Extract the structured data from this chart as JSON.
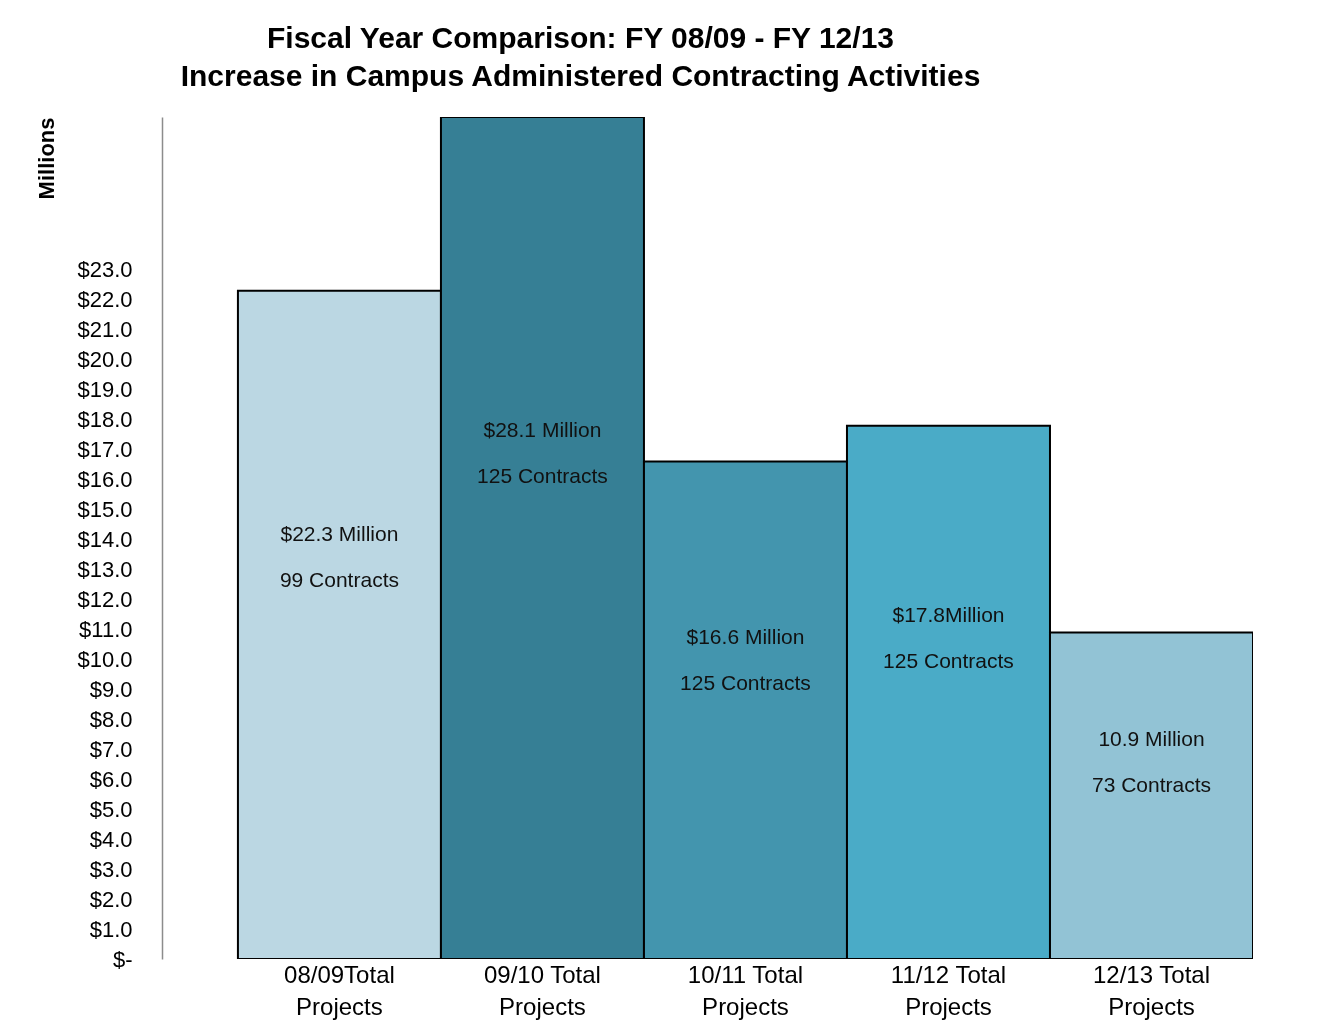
{
  "chart_data": {
    "type": "bar",
    "title": "Fiscal Year Comparison:  FY 08/09 - FY 12/13",
    "subtitle": "Increase in Campus Administered Contracting Activities",
    "ylabel": "Millions",
    "categories": [
      "08/09Total Projects",
      "09/10 Total Projects",
      "10/11 Total Projects",
      "11/12 Total Projects",
      "12/13 Total Projects"
    ],
    "values": [
      22.3,
      28.1,
      16.6,
      17.8,
      10.9
    ],
    "value_labels": [
      "$22.3 Million\n99 Contracts",
      "$28.1 Million\n125 Contracts",
      "$16.6 Million\n125 Contracts",
      "$17.8Million\n125 Contracts",
      "10.9 Million\n73 Contracts"
    ],
    "colors": [
      "#bbd7e3",
      "#367f95",
      "#4395ae",
      "#4aabc7",
      "#92c3d5"
    ],
    "ylim": [
      0,
      28.1
    ],
    "yticks": [
      {
        "value": 0,
        "label": "$-"
      },
      {
        "value": 1,
        "label": "$1.0"
      },
      {
        "value": 2,
        "label": "$2.0"
      },
      {
        "value": 3,
        "label": "$3.0"
      },
      {
        "value": 4,
        "label": "$4.0"
      },
      {
        "value": 5,
        "label": "$5.0"
      },
      {
        "value": 6,
        "label": "$6.0"
      },
      {
        "value": 7,
        "label": "$7.0"
      },
      {
        "value": 8,
        "label": "$8.0"
      },
      {
        "value": 9,
        "label": "$9.0"
      },
      {
        "value": 10,
        "label": "$10.0"
      },
      {
        "value": 11,
        "label": "$11.0"
      },
      {
        "value": 12,
        "label": "$12.0"
      },
      {
        "value": 13,
        "label": "$13.0"
      },
      {
        "value": 14,
        "label": "$14.0"
      },
      {
        "value": 15,
        "label": "$15.0"
      },
      {
        "value": 16,
        "label": "$16.0"
      },
      {
        "value": 17,
        "label": "$17.0"
      },
      {
        "value": 18,
        "label": "$18.0"
      },
      {
        "value": 19,
        "label": "$19.0"
      },
      {
        "value": 20,
        "label": "$20.0"
      },
      {
        "value": 21,
        "label": "$21.0"
      },
      {
        "value": 22,
        "label": "$22.0"
      },
      {
        "value": 23,
        "label": "$23.0"
      }
    ]
  }
}
